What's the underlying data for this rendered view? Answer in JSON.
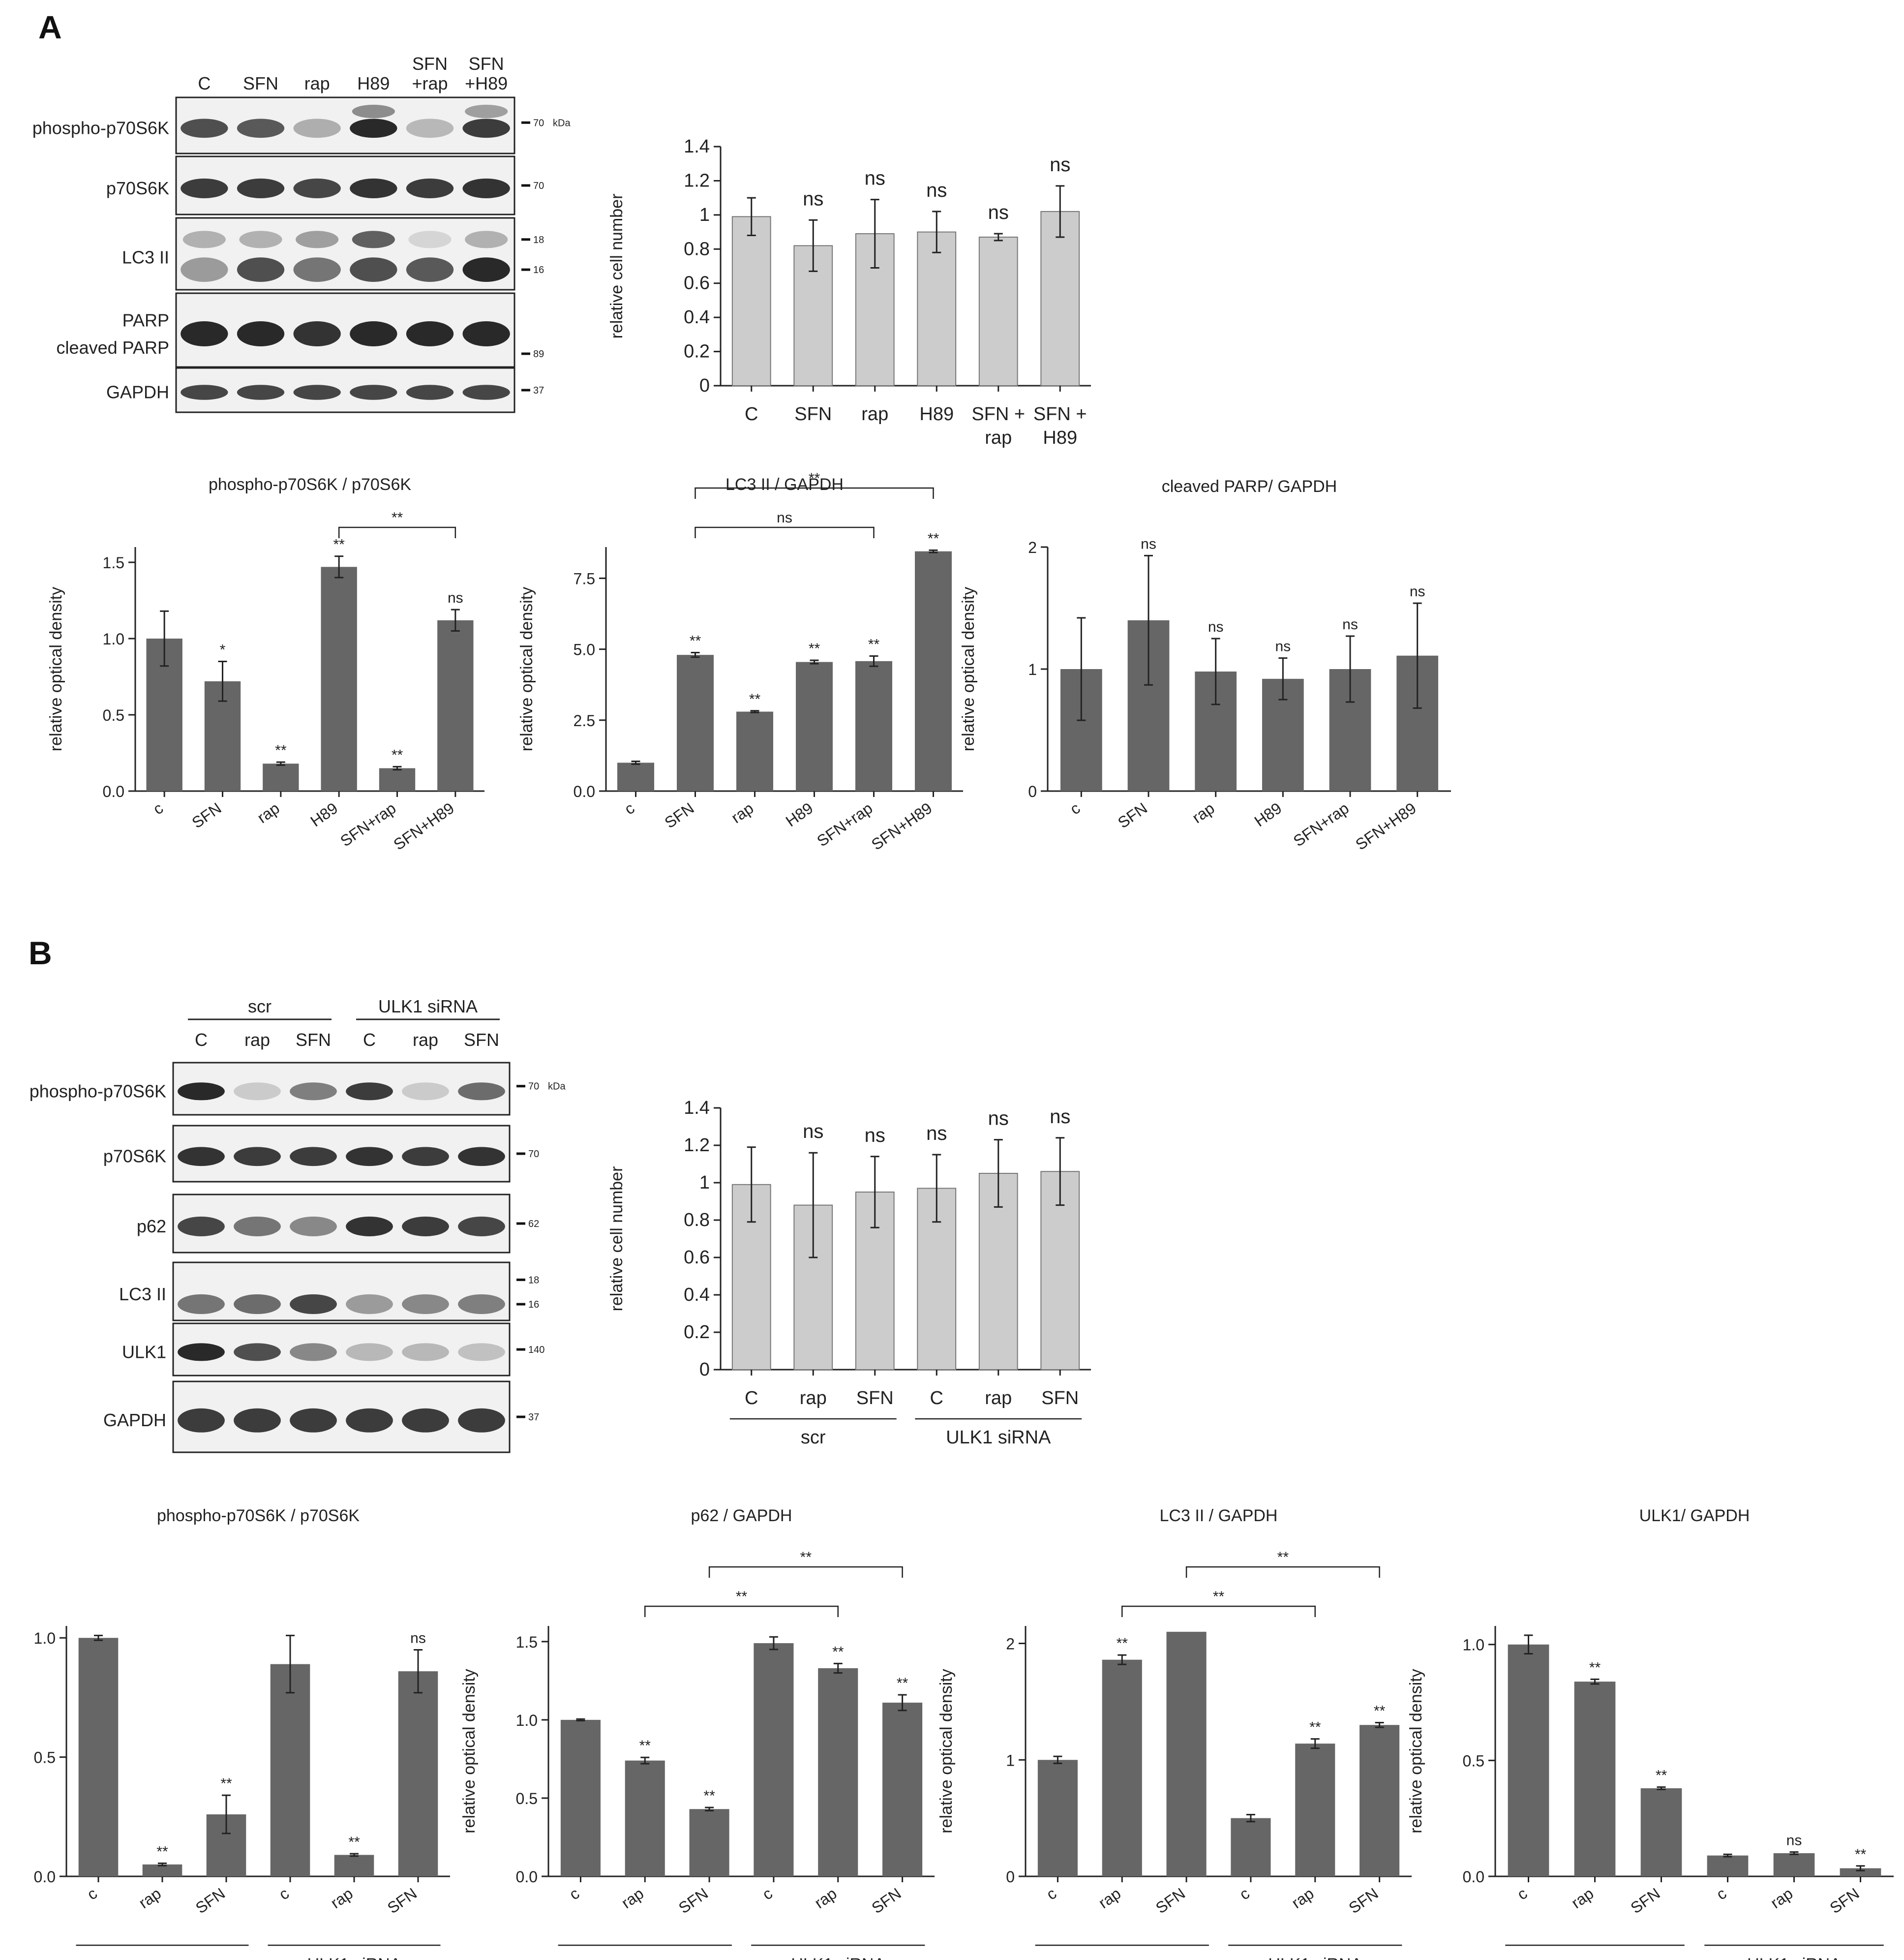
{
  "panels": {
    "A": {
      "letter": "A"
    },
    "B": {
      "letter": "B"
    }
  },
  "blotA": {
    "lanes": [
      "C",
      "SFN",
      "rap",
      "H89",
      "SFN\n+rap",
      "SFN\n+H89"
    ],
    "rows": [
      {
        "label": "phospho-p70S6K",
        "mw": [
          "70",
          "kDa"
        ],
        "bands": [
          0.75,
          0.7,
          0.25,
          0.95,
          0.2,
          0.85
        ],
        "upper": [
          0,
          0,
          0,
          0.45,
          0,
          0.35
        ]
      },
      {
        "label": "p70S6K",
        "mw": [
          "70"
        ],
        "bands": [
          0.85,
          0.85,
          0.8,
          0.9,
          0.85,
          0.9
        ],
        "upper": [
          0,
          0,
          0,
          0,
          0,
          0
        ]
      },
      {
        "label": "LC3 II",
        "mw": [
          "18",
          "16"
        ],
        "bands": [
          0.35,
          0.75,
          0.55,
          0.75,
          0.7,
          0.95
        ],
        "upper": [
          0.25,
          0.25,
          0.35,
          0.7,
          0.05,
          0.25
        ]
      },
      {
        "label": "PARP",
        "label2": "cleaved PARP",
        "mw": [
          "89"
        ],
        "bands": [
          0.95,
          0.95,
          0.9,
          0.95,
          0.95,
          0.95
        ],
        "upper": [
          0,
          0,
          0,
          0,
          0,
          0
        ]
      },
      {
        "label": "GAPDH",
        "mw": [
          "37"
        ],
        "bands": [
          0.8,
          0.8,
          0.8,
          0.8,
          0.8,
          0.8
        ],
        "upper": [
          0,
          0,
          0,
          0,
          0,
          0
        ]
      }
    ]
  },
  "blotB": {
    "groups": [
      "scr",
      "ULK1 siRNA"
    ],
    "lanes": [
      "C",
      "rap",
      "SFN",
      "C",
      "rap",
      "SFN"
    ],
    "rows": [
      {
        "label": "phospho-p70S6K",
        "mw": [
          "70",
          "kDa"
        ],
        "bands": [
          0.95,
          0.1,
          0.5,
          0.85,
          0.1,
          0.6
        ],
        "upper": [
          0,
          0,
          0,
          0,
          0,
          0
        ]
      },
      {
        "label": "p70S6K",
        "mw": [
          "70"
        ],
        "bands": [
          0.9,
          0.85,
          0.85,
          0.9,
          0.85,
          0.9
        ],
        "upper": [
          0,
          0,
          0,
          0,
          0,
          0
        ]
      },
      {
        "label": "p62",
        "mw": [
          "62"
        ],
        "bands": [
          0.8,
          0.55,
          0.45,
          0.9,
          0.85,
          0.8
        ],
        "upper": [
          0,
          0,
          0,
          0,
          0,
          0
        ]
      },
      {
        "label": "LC3 II",
        "mw": [
          "18",
          "16"
        ],
        "bands": [
          0.55,
          0.6,
          0.8,
          0.35,
          0.45,
          0.5
        ],
        "upper": [
          0,
          0,
          0,
          0,
          0,
          0
        ]
      },
      {
        "label": "ULK1",
        "mw": [
          "140"
        ],
        "bands": [
          0.95,
          0.75,
          0.45,
          0.2,
          0.2,
          0.15
        ],
        "upper": [
          0,
          0,
          0,
          0,
          0,
          0
        ]
      },
      {
        "label": "GAPDH",
        "mw": [
          "37"
        ],
        "bands": [
          0.85,
          0.85,
          0.85,
          0.85,
          0.85,
          0.85
        ],
        "upper": [
          0,
          0,
          0,
          0,
          0,
          0
        ]
      }
    ]
  },
  "chart_data": [
    {
      "id": "A-cell",
      "type": "bar",
      "title": "",
      "ylabel": "relative cell number",
      "categories": [
        "C",
        "SFN",
        "rap",
        "H89",
        "SFN +\nrap",
        "SFN +\nH89"
      ],
      "values": [
        0.99,
        0.82,
        0.89,
        0.9,
        0.87,
        1.02
      ],
      "errors": [
        0.11,
        0.15,
        0.2,
        0.12,
        0.02,
        0.15
      ],
      "annotations": [
        "",
        "ns",
        "ns",
        "ns",
        "ns",
        "ns"
      ],
      "ylim": [
        0,
        1.4
      ],
      "yticks": [
        "0",
        "0.2",
        "0.4",
        "0.6",
        "0.8",
        "1",
        "1.2",
        "1.4"
      ],
      "ytickvals": [
        0,
        0.2,
        0.4,
        0.6,
        0.8,
        1,
        1.2,
        1.4
      ],
      "color": "#cccccc"
    },
    {
      "id": "A-p70",
      "type": "bar",
      "title": "phospho-p70S6K / p70S6K",
      "ylabel": "relative optical density",
      "categories": [
        "c",
        "SFN",
        "rap",
        "H89",
        "SFN+rap",
        "SFN+H89"
      ],
      "values": [
        1.0,
        0.72,
        0.18,
        1.47,
        0.15,
        1.12
      ],
      "errors": [
        0.18,
        0.13,
        0.01,
        0.07,
        0.01,
        0.07
      ],
      "annotations": [
        "",
        "*",
        "**",
        "**",
        "**",
        "ns"
      ],
      "ylim": [
        0,
        1.6
      ],
      "yticks": [
        "0.0",
        "0.5",
        "1.0",
        "1.5"
      ],
      "ytickvals": [
        0,
        0.5,
        1.0,
        1.5
      ],
      "brackets": [
        {
          "from": 3,
          "to": 5,
          "label": "**"
        }
      ],
      "color": "#666666"
    },
    {
      "id": "A-lc3",
      "type": "bar",
      "title": "LC3 II / GAPDH",
      "ylabel": "relative optical density",
      "categories": [
        "c",
        "SFN",
        "rap",
        "H89",
        "SFN+rap",
        "SFN+H89"
      ],
      "values": [
        1.0,
        4.8,
        2.8,
        4.55,
        4.58,
        8.45
      ],
      "errors": [
        0.05,
        0.08,
        0.03,
        0.06,
        0.18,
        0.04
      ],
      "annotations": [
        "",
        "**",
        "**",
        "**",
        "**",
        "**"
      ],
      "ylim": [
        0,
        8.6
      ],
      "yticks": [
        "0.0",
        "2.5",
        "5.0",
        "7.5"
      ],
      "ytickvals": [
        0,
        2.5,
        5.0,
        7.5
      ],
      "brackets": [
        {
          "from": 1,
          "to": 5,
          "label": "**",
          "level": 2
        },
        {
          "from": 1,
          "to": 4,
          "label": "ns",
          "level": 1
        }
      ],
      "color": "#666666"
    },
    {
      "id": "A-parp",
      "type": "bar",
      "title": "cleaved PARP/ GAPDH",
      "ylabel": "relative optical density",
      "categories": [
        "c",
        "SFN",
        "rap",
        "H89",
        "SFN+rap",
        "SFN+H89"
      ],
      "values": [
        1.0,
        1.4,
        0.98,
        0.92,
        1.0,
        1.11
      ],
      "errors": [
        0.42,
        0.53,
        0.27,
        0.17,
        0.27,
        0.43
      ],
      "annotations": [
        "",
        "ns",
        "ns",
        "ns",
        "ns",
        "ns"
      ],
      "ylim": [
        0,
        2.0
      ],
      "yticks": [
        "0",
        "1",
        "2"
      ],
      "ytickvals": [
        0,
        1,
        2
      ],
      "color": "#666666"
    },
    {
      "id": "B-cell",
      "type": "bar",
      "title": "",
      "ylabel": "relative cell number",
      "categories": [
        "C",
        "rap",
        "SFN",
        "C",
        "rap",
        "SFN"
      ],
      "groups": [
        "scr",
        "ULK1 siRNA"
      ],
      "values": [
        0.99,
        0.88,
        0.95,
        0.97,
        1.05,
        1.06
      ],
      "errors": [
        0.2,
        0.28,
        0.19,
        0.18,
        0.18,
        0.18
      ],
      "annotations": [
        "",
        "ns",
        "ns",
        "ns",
        "ns",
        "ns"
      ],
      "ylim": [
        0,
        1.4
      ],
      "yticks": [
        "0",
        "0.2",
        "0.4",
        "0.6",
        "0.8",
        "1",
        "1.2",
        "1.4"
      ],
      "ytickvals": [
        0,
        0.2,
        0.4,
        0.6,
        0.8,
        1,
        1.2,
        1.4
      ],
      "color": "#cccccc"
    },
    {
      "id": "B-p70",
      "type": "bar",
      "title": "phospho-p70S6K / p70S6K",
      "ylabel": "relative optical density",
      "categories": [
        "c",
        "rap",
        "SFN",
        "c",
        "rap",
        "SFN"
      ],
      "groups": [
        "scr",
        "ULK1 siRNA"
      ],
      "values": [
        1.0,
        0.05,
        0.26,
        0.89,
        0.09,
        0.86
      ],
      "errors": [
        0.01,
        0.005,
        0.08,
        0.12,
        0.005,
        0.09
      ],
      "annotations": [
        "",
        "**",
        "**",
        "",
        "**",
        "ns"
      ],
      "ylim": [
        0,
        1.05
      ],
      "yticks": [
        "0.0",
        "0.5",
        "1.0"
      ],
      "ytickvals": [
        0,
        0.5,
        1.0
      ],
      "color": "#666666"
    },
    {
      "id": "B-p62",
      "type": "bar",
      "title": "p62 / GAPDH",
      "ylabel": "relative optical density",
      "categories": [
        "c",
        "rap",
        "SFN",
        "c",
        "rap",
        "SFN"
      ],
      "groups": [
        "scr",
        "ULK1 siRNA"
      ],
      "values": [
        1.0,
        0.74,
        0.43,
        1.49,
        1.33,
        1.11
      ],
      "errors": [
        0.005,
        0.02,
        0.01,
        0.04,
        0.03,
        0.05
      ],
      "annotations": [
        "",
        "**",
        "**",
        "",
        "**",
        "**"
      ],
      "ylim": [
        0,
        1.6
      ],
      "yticks": [
        "0.0",
        "0.5",
        "1.0",
        "1.5"
      ],
      "ytickvals": [
        0,
        0.5,
        1.0,
        1.5
      ],
      "brackets": [
        {
          "from": 2,
          "to": 5,
          "label": "**",
          "level": 2
        },
        {
          "from": 1,
          "to": 4,
          "label": "**",
          "level": 1
        }
      ],
      "color": "#666666"
    },
    {
      "id": "B-lc3",
      "type": "bar",
      "title": "LC3 II / GAPDH",
      "ylabel": "relative optical density",
      "categories": [
        "c",
        "rap",
        "SFN",
        "c",
        "rap",
        "SFN"
      ],
      "groups": [
        "scr",
        "ULK1 siRNA"
      ],
      "values": [
        1.0,
        1.86,
        2.1,
        0.5,
        1.14,
        1.3
      ],
      "errors": [
        0.03,
        0.04,
        0.0,
        0.03,
        0.04,
        0.02
      ],
      "annotations": [
        "",
        "**",
        "",
        "",
        "**",
        "**"
      ],
      "ylim": [
        0,
        2.15
      ],
      "yticks": [
        "0",
        "1",
        "2"
      ],
      "ytickvals": [
        0,
        1,
        2
      ],
      "brackets": [
        {
          "from": 2,
          "to": 5,
          "label": "**",
          "level": 2
        },
        {
          "from": 1,
          "to": 4,
          "label": "**",
          "level": 1
        }
      ],
      "color": "#666666"
    },
    {
      "id": "B-ulk1",
      "type": "bar",
      "title": "ULK1/ GAPDH",
      "ylabel": "relative optical density",
      "categories": [
        "c",
        "rap",
        "SFN",
        "c",
        "rap",
        "SFN"
      ],
      "groups": [
        "scr",
        "ULK1 siRNA"
      ],
      "values": [
        1.0,
        0.84,
        0.38,
        0.09,
        0.1,
        0.035
      ],
      "errors": [
        0.04,
        0.01,
        0.005,
        0.005,
        0.005,
        0.01
      ],
      "annotations": [
        "",
        "**",
        "**",
        "",
        "ns",
        "**"
      ],
      "ylim": [
        0,
        1.08
      ],
      "yticks": [
        "0.0",
        "0.5",
        "1.0"
      ],
      "ytickvals": [
        0,
        0.5,
        1.0
      ],
      "color": "#666666"
    }
  ]
}
